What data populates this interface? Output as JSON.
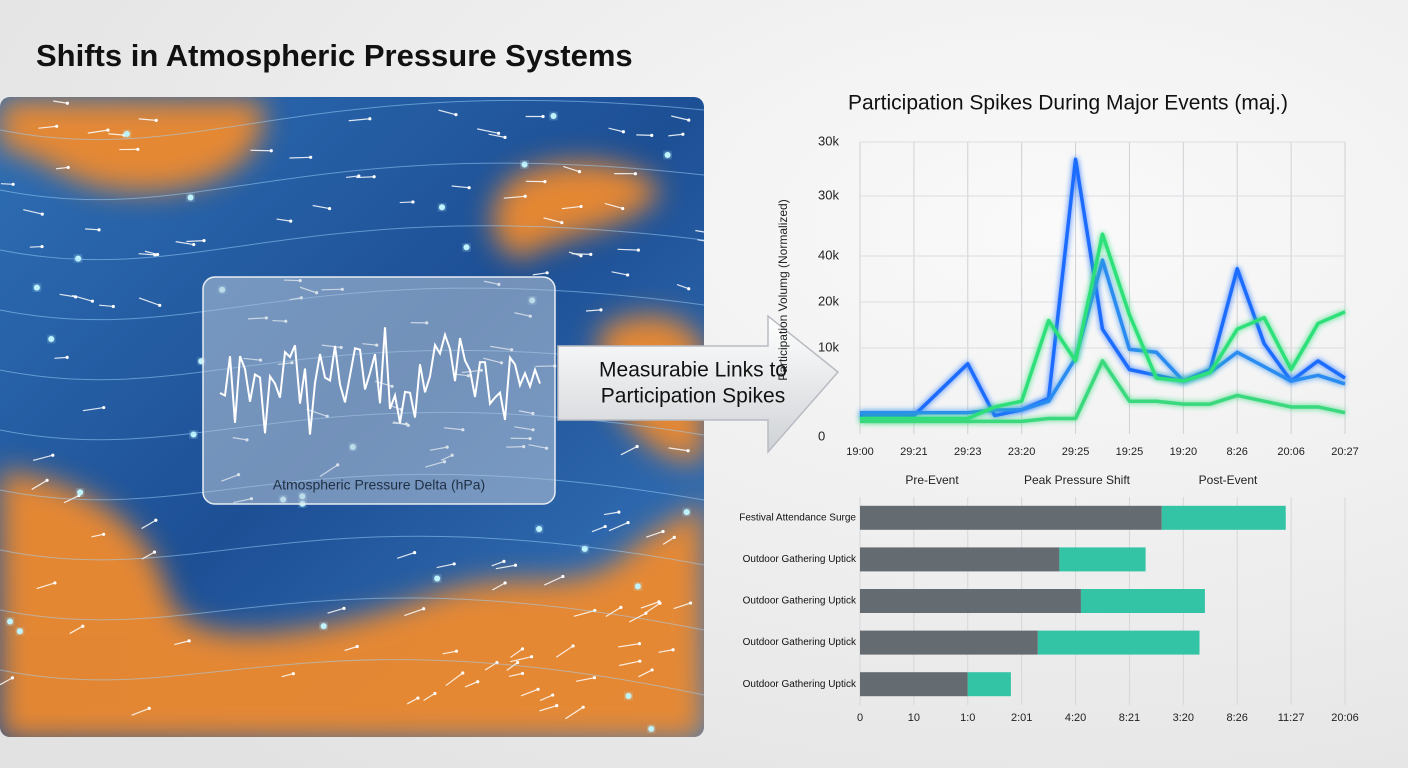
{
  "title": "Shifts in Atmospheric Pressure Systems",
  "map_panel": {
    "label": "Atmospheric Pressure Delta (hPa)"
  },
  "callout": {
    "lines": [
      "Measurabie Links to",
      "Participation Spikes"
    ]
  },
  "chart_data": [
    {
      "type": "line",
      "title": "Participation Spikes During Major Events (maj.)",
      "y_label": "Participation Volumg (Normalized)",
      "y_labels": [
        "30k",
        "30k",
        "40k",
        "20k",
        "10k",
        "0"
      ],
      "categories": [
        "19:00",
        null,
        "29:21",
        null,
        "29:23",
        null,
        "23:20",
        null,
        "29:25",
        null,
        "19:25",
        null,
        "19:20",
        null,
        "8:26",
        null,
        "20:06",
        null,
        "20:27"
      ],
      "ylim": [
        0,
        100
      ],
      "grid": true,
      "series": [
        {
          "color": "#1e6cff",
          "values": [
            5,
            5,
            5,
            14,
            23,
            5,
            7,
            11,
            94,
            35,
            21,
            19,
            17,
            21,
            56,
            30,
            17,
            24,
            18
          ]
        },
        {
          "color": "#2a8cf0",
          "values": [
            6,
            6,
            6,
            6,
            6,
            7,
            7,
            10,
            25,
            59,
            28,
            27,
            17,
            20,
            27,
            22,
            17,
            19,
            16
          ]
        },
        {
          "color": "#2ee07a",
          "values": [
            4,
            4,
            4,
            4,
            4,
            8,
            10,
            38,
            24,
            68,
            40,
            18,
            17,
            20,
            35,
            39,
            21,
            37,
            41
          ]
        },
        {
          "color": "#3ad97e",
          "values": [
            3,
            3,
            3,
            3,
            3,
            3,
            3,
            4,
            4,
            24,
            10,
            10,
            9,
            9,
            12,
            10,
            8,
            8,
            6
          ]
        }
      ]
    },
    {
      "type": "hbar_stacked",
      "column_headers": [
        "Pre-Event",
        "Peak Pressure Shift",
        "Post-Event"
      ],
      "categories": [
        "Festival Attendance Surge",
        "Outdoor Gathering Uptick",
        "Outdoor Gathering Uptick",
        "Outdoor Gathering Uptick",
        "Outdoor Gathering Uptick"
      ],
      "x_labels": [
        "0",
        "10",
        "1:0",
        "2:01",
        "4:20",
        "8:21",
        "3:20",
        "8:26",
        "11:27",
        "20:06"
      ],
      "xlim": [
        0,
        9
      ],
      "grid": true,
      "series": [
        {
          "color": "#646c72",
          "values": [
            5.6,
            3.7,
            4.1,
            3.3,
            2.0
          ]
        },
        {
          "color": "#33c4a6",
          "values": [
            2.3,
            1.6,
            2.3,
            3.0,
            0.8
          ]
        }
      ]
    }
  ]
}
